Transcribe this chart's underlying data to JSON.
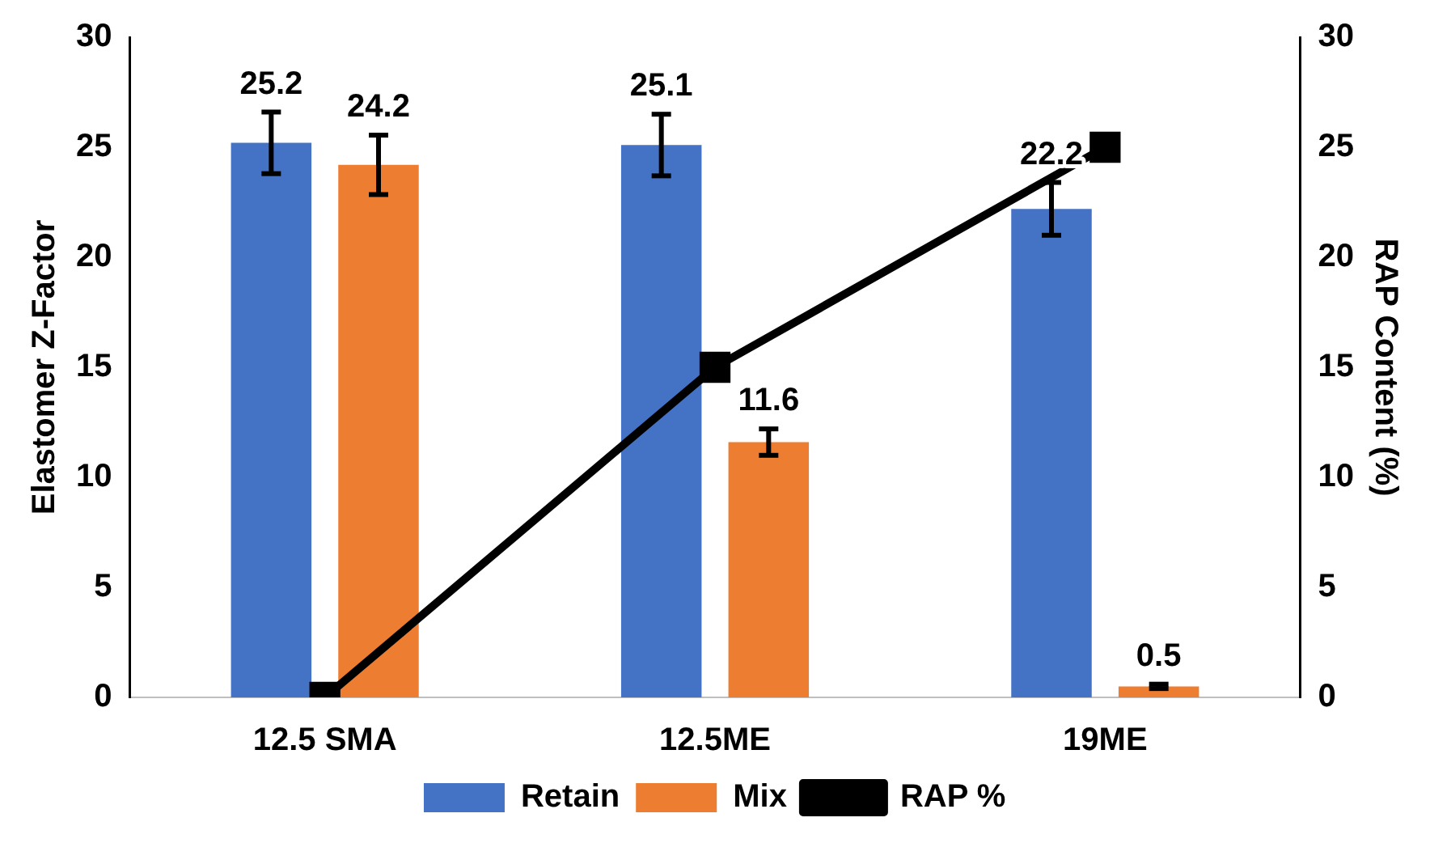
{
  "chart_data": {
    "type": "bar",
    "categories": [
      "12.5 SMA",
      "12.5ME",
      "19ME"
    ],
    "series": [
      {
        "name": "Retain",
        "color": "#4472c4",
        "values": [
          25.2,
          25.1,
          22.2
        ],
        "errors": [
          1.4,
          1.4,
          1.2
        ],
        "value_labels": [
          "25.2",
          "25.1",
          "22.2"
        ]
      },
      {
        "name": "Mix",
        "color": "#ed7d31",
        "values": [
          24.2,
          11.6,
          0.5
        ],
        "errors": [
          1.35,
          0.6,
          0.1
        ],
        "value_labels": [
          "24.2",
          "11.6",
          "0.5"
        ]
      },
      {
        "name": "RAP %",
        "type": "line",
        "axis": "y2",
        "color": "#000000",
        "values": [
          0,
          15,
          25
        ],
        "marker": "square"
      }
    ],
    "ylabel": "Elastomer Z-Factor",
    "y2label": "RAP Content (%)",
    "ylim": [
      0,
      30
    ],
    "yticks": [
      0,
      5,
      10,
      15,
      20,
      25,
      30
    ],
    "y2lim": [
      0,
      30
    ],
    "y2ticks": [
      0,
      5,
      10,
      15,
      20,
      25,
      30
    ],
    "grid": false,
    "legend": "bottom"
  }
}
